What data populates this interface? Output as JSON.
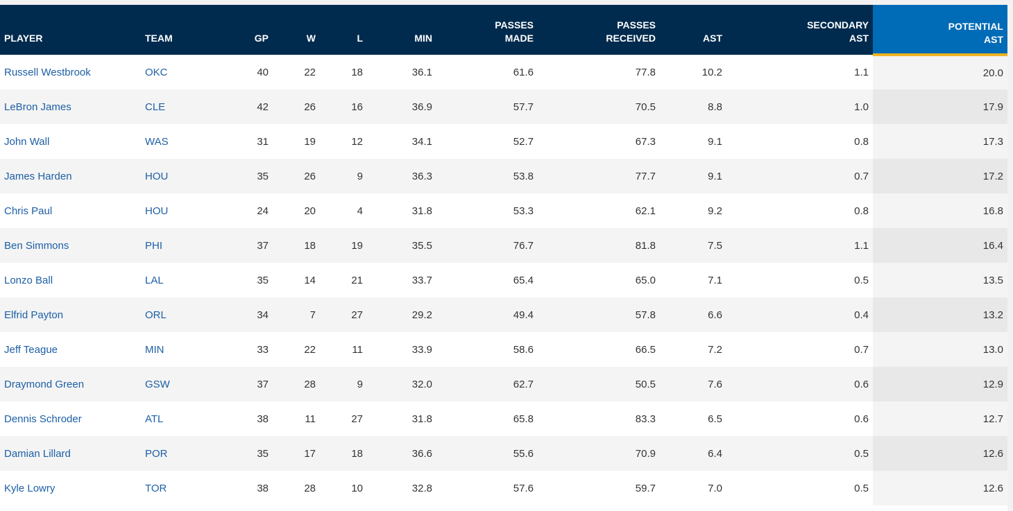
{
  "table": {
    "columns": [
      {
        "key": "player",
        "label": "PLAYER"
      },
      {
        "key": "team",
        "label": "TEAM"
      },
      {
        "key": "gp",
        "label": "GP"
      },
      {
        "key": "w",
        "label": "W"
      },
      {
        "key": "l",
        "label": "L"
      },
      {
        "key": "min",
        "label": "MIN"
      },
      {
        "key": "passes_made",
        "label": "PASSES\nMADE"
      },
      {
        "key": "passes_received",
        "label": "PASSES\nRECEIVED"
      },
      {
        "key": "ast",
        "label": "AST"
      },
      {
        "key": "secondary_ast",
        "label": "SECONDARY\nAST"
      },
      {
        "key": "potential_ast",
        "label": "POTENTIAL\nAST"
      }
    ],
    "sorted_column": "potential_ast",
    "rows": [
      {
        "player": "Russell Westbrook",
        "team": "OKC",
        "gp": "40",
        "w": "22",
        "l": "18",
        "min": "36.1",
        "passes_made": "61.6",
        "passes_received": "77.8",
        "ast": "10.2",
        "secondary_ast": "1.1",
        "potential_ast": "20.0"
      },
      {
        "player": "LeBron James",
        "team": "CLE",
        "gp": "42",
        "w": "26",
        "l": "16",
        "min": "36.9",
        "passes_made": "57.7",
        "passes_received": "70.5",
        "ast": "8.8",
        "secondary_ast": "1.0",
        "potential_ast": "17.9"
      },
      {
        "player": "John Wall",
        "team": "WAS",
        "gp": "31",
        "w": "19",
        "l": "12",
        "min": "34.1",
        "passes_made": "52.7",
        "passes_received": "67.3",
        "ast": "9.1",
        "secondary_ast": "0.8",
        "potential_ast": "17.3"
      },
      {
        "player": "James Harden",
        "team": "HOU",
        "gp": "35",
        "w": "26",
        "l": "9",
        "min": "36.3",
        "passes_made": "53.8",
        "passes_received": "77.7",
        "ast": "9.1",
        "secondary_ast": "0.7",
        "potential_ast": "17.2"
      },
      {
        "player": "Chris Paul",
        "team": "HOU",
        "gp": "24",
        "w": "20",
        "l": "4",
        "min": "31.8",
        "passes_made": "53.3",
        "passes_received": "62.1",
        "ast": "9.2",
        "secondary_ast": "0.8",
        "potential_ast": "16.8"
      },
      {
        "player": "Ben Simmons",
        "team": "PHI",
        "gp": "37",
        "w": "18",
        "l": "19",
        "min": "35.5",
        "passes_made": "76.7",
        "passes_received": "81.8",
        "ast": "7.5",
        "secondary_ast": "1.1",
        "potential_ast": "16.4"
      },
      {
        "player": "Lonzo Ball",
        "team": "LAL",
        "gp": "35",
        "w": "14",
        "l": "21",
        "min": "33.7",
        "passes_made": "65.4",
        "passes_received": "65.0",
        "ast": "7.1",
        "secondary_ast": "0.5",
        "potential_ast": "13.5"
      },
      {
        "player": "Elfrid Payton",
        "team": "ORL",
        "gp": "34",
        "w": "7",
        "l": "27",
        "min": "29.2",
        "passes_made": "49.4",
        "passes_received": "57.8",
        "ast": "6.6",
        "secondary_ast": "0.4",
        "potential_ast": "13.2"
      },
      {
        "player": "Jeff Teague",
        "team": "MIN",
        "gp": "33",
        "w": "22",
        "l": "11",
        "min": "33.9",
        "passes_made": "58.6",
        "passes_received": "66.5",
        "ast": "7.2",
        "secondary_ast": "0.7",
        "potential_ast": "13.0"
      },
      {
        "player": "Draymond Green",
        "team": "GSW",
        "gp": "37",
        "w": "28",
        "l": "9",
        "min": "32.0",
        "passes_made": "62.7",
        "passes_received": "50.5",
        "ast": "7.6",
        "secondary_ast": "0.6",
        "potential_ast": "12.9"
      },
      {
        "player": "Dennis Schroder",
        "team": "ATL",
        "gp": "38",
        "w": "11",
        "l": "27",
        "min": "31.8",
        "passes_made": "65.8",
        "passes_received": "83.3",
        "ast": "6.5",
        "secondary_ast": "0.6",
        "potential_ast": "12.7"
      },
      {
        "player": "Damian Lillard",
        "team": "POR",
        "gp": "35",
        "w": "17",
        "l": "18",
        "min": "36.6",
        "passes_made": "55.6",
        "passes_received": "70.9",
        "ast": "6.4",
        "secondary_ast": "0.5",
        "potential_ast": "12.6"
      },
      {
        "player": "Kyle Lowry",
        "team": "TOR",
        "gp": "38",
        "w": "28",
        "l": "10",
        "min": "32.8",
        "passes_made": "57.6",
        "passes_received": "59.7",
        "ast": "7.0",
        "secondary_ast": "0.5",
        "potential_ast": "12.6"
      }
    ]
  },
  "colors": {
    "header_bg": "#002b4e",
    "sorted_header_bg": "#006bb6",
    "sorted_underline": "#f0b323",
    "link": "#1d5fa6"
  }
}
